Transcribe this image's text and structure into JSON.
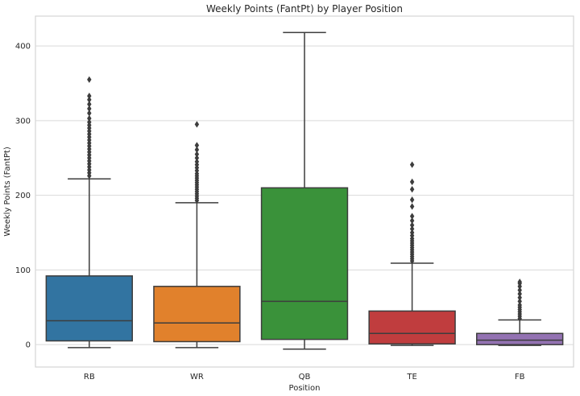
{
  "chart_data": {
    "type": "box",
    "title": "Weekly Points (FantPt) by Player Position",
    "xlabel": "Position",
    "ylabel": "Weekly Points (FantPt)",
    "ylim": [
      -30,
      440
    ],
    "yticks": [
      0,
      100,
      200,
      300,
      400
    ],
    "grid": "horizontal",
    "categories": [
      "RB",
      "WR",
      "QB",
      "TE",
      "FB"
    ],
    "colors": [
      "#3274a1",
      "#e1812c",
      "#3a923a",
      "#c03d3e",
      "#9372b2"
    ],
    "boxes": [
      {
        "category": "RB",
        "whisker_low": -4,
        "q1": 5,
        "median": 32,
        "q3": 92,
        "whisker_high": 222,
        "outliers": [
          226,
          230,
          234,
          238,
          242,
          246,
          250,
          254,
          258,
          262,
          266,
          270,
          274,
          278,
          282,
          286,
          290,
          294,
          298,
          303,
          310,
          316,
          322,
          328,
          333,
          355
        ]
      },
      {
        "category": "WR",
        "whisker_low": -4,
        "q1": 4,
        "median": 29,
        "q3": 78,
        "whisker_high": 190,
        "outliers": [
          193,
          196,
          199,
          202,
          205,
          208,
          211,
          214,
          217,
          220,
          223,
          226,
          229,
          233,
          237,
          241,
          245,
          250,
          255,
          261,
          267,
          295
        ]
      },
      {
        "category": "QB",
        "whisker_low": -6,
        "q1": 7,
        "median": 58,
        "q3": 210,
        "whisker_high": 418,
        "outliers": []
      },
      {
        "category": "TE",
        "whisker_low": -1,
        "q1": 1,
        "median": 15,
        "q3": 45,
        "whisker_high": 109,
        "outliers": [
          112,
          115,
          118,
          121,
          124,
          127,
          130,
          133,
          136,
          139,
          142,
          146,
          150,
          155,
          160,
          166,
          172,
          185,
          194,
          208,
          218,
          241
        ]
      },
      {
        "category": "FB",
        "whisker_low": -1,
        "q1": 0,
        "median": 6,
        "q3": 15,
        "whisker_high": 33,
        "outliers": [
          35,
          38,
          41,
          44,
          47,
          50,
          53,
          58,
          63,
          68,
          73,
          78,
          82,
          84
        ]
      }
    ]
  }
}
